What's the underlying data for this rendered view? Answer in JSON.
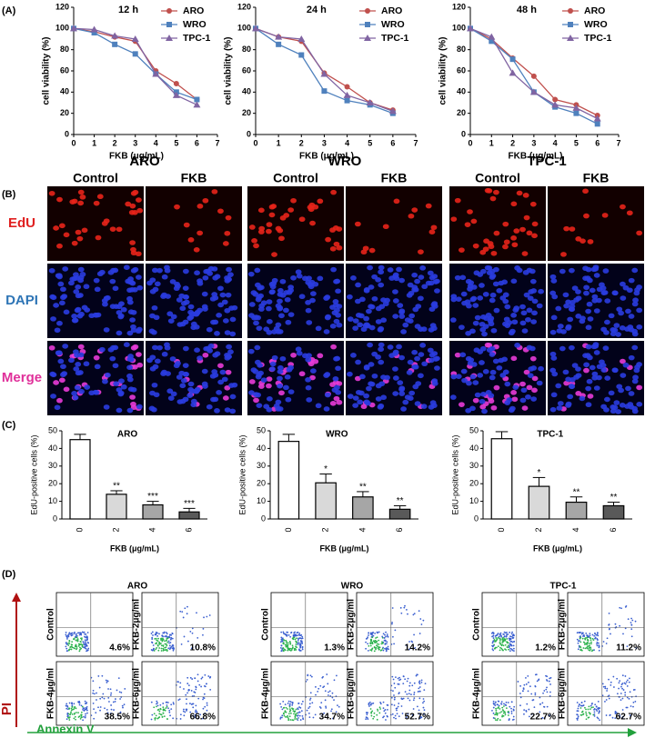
{
  "panel_labels": [
    "(A)",
    "(B)",
    "(C)",
    "(D)"
  ],
  "chart_data": [
    {
      "type": "line",
      "title": "12 h",
      "x_label": "FKB (μg/mL)",
      "y_label": "cell viability (%)",
      "x": [
        0,
        1,
        2,
        3,
        4,
        5,
        6
      ],
      "xlim": [
        0,
        7
      ],
      "xticks": [
        0,
        1,
        2,
        3,
        4,
        5,
        6,
        7
      ],
      "ylim": [
        0,
        120
      ],
      "yticks": [
        0,
        20,
        40,
        60,
        80,
        100,
        120
      ],
      "legend": "upper right",
      "series": [
        {
          "name": "ARO",
          "color": "#c0504d",
          "marker": "circle",
          "values": [
            100,
            97,
            92,
            88,
            60,
            48,
            33
          ]
        },
        {
          "name": "WRO",
          "color": "#4f81bd",
          "marker": "square",
          "values": [
            100,
            96,
            85,
            76,
            57,
            40,
            33
          ]
        },
        {
          "name": "TPC-1",
          "color": "#8064a2",
          "marker": "triangle",
          "values": [
            100,
            99,
            93,
            90,
            57,
            37,
            28
          ]
        }
      ]
    },
    {
      "type": "line",
      "title": "24 h",
      "x_label": "FKB (μg/mL)",
      "y_label": "cell viability (%)",
      "x": [
        0,
        1,
        2,
        3,
        4,
        5,
        6
      ],
      "xlim": [
        0,
        7
      ],
      "xticks": [
        0,
        1,
        2,
        3,
        4,
        5,
        6,
        7
      ],
      "ylim": [
        0,
        120
      ],
      "yticks": [
        0,
        20,
        40,
        60,
        80,
        100,
        120
      ],
      "legend": "upper right",
      "series": [
        {
          "name": "ARO",
          "color": "#c0504d",
          "marker": "circle",
          "values": [
            100,
            92,
            88,
            58,
            45,
            30,
            23
          ]
        },
        {
          "name": "WRO",
          "color": "#4f81bd",
          "marker": "square",
          "values": [
            100,
            85,
            75,
            41,
            32,
            28,
            20
          ]
        },
        {
          "name": "TPC-1",
          "color": "#8064a2",
          "marker": "triangle",
          "values": [
            100,
            92,
            90,
            57,
            37,
            30,
            22
          ]
        }
      ]
    },
    {
      "type": "line",
      "title": "48 h",
      "x_label": "FKB (μg/mL)",
      "y_label": "cell viability (%)",
      "x": [
        0,
        1,
        2,
        3,
        4,
        5,
        6
      ],
      "xlim": [
        0,
        7
      ],
      "xticks": [
        0,
        1,
        2,
        3,
        4,
        5,
        6,
        7
      ],
      "ylim": [
        0,
        120
      ],
      "yticks": [
        0,
        20,
        40,
        60,
        80,
        100,
        120
      ],
      "legend": "upper right",
      "series": [
        {
          "name": "ARO",
          "color": "#c0504d",
          "marker": "circle",
          "values": [
            100,
            90,
            72,
            55,
            33,
            28,
            18
          ]
        },
        {
          "name": "WRO",
          "color": "#4f81bd",
          "marker": "square",
          "values": [
            100,
            88,
            71,
            40,
            26,
            20,
            10
          ]
        },
        {
          "name": "TPC-1",
          "color": "#8064a2",
          "marker": "triangle",
          "values": [
            100,
            92,
            58,
            40,
            28,
            25,
            15
          ]
        }
      ]
    },
    {
      "type": "bar",
      "title": "ARO",
      "x_label": "FKB (μg/mL)",
      "y_label": "EdU-positive cells (%)",
      "categories": [
        "0",
        "2",
        "4",
        "6"
      ],
      "values": [
        45,
        14,
        8,
        4
      ],
      "errors": [
        3,
        2,
        2,
        2
      ],
      "annotations": [
        null,
        "**",
        "***",
        "***"
      ],
      "colors": [
        "#ffffff",
        "#d9d9d9",
        "#a6a6a6",
        "#595959"
      ],
      "ylim": [
        0,
        50
      ],
      "yticks": [
        0,
        10,
        20,
        30,
        40,
        50
      ]
    },
    {
      "type": "bar",
      "title": "WRO",
      "x_label": "FKB (μg/mL)",
      "y_label": "EdU-positive cells (%)",
      "categories": [
        "0",
        "2",
        "4",
        "6"
      ],
      "values": [
        44,
        20.5,
        12.5,
        5.5
      ],
      "errors": [
        4,
        5,
        3,
        2
      ],
      "annotations": [
        null,
        "*",
        "**",
        "**"
      ],
      "colors": [
        "#ffffff",
        "#d9d9d9",
        "#a6a6a6",
        "#595959"
      ],
      "ylim": [
        0,
        50
      ],
      "yticks": [
        0,
        10,
        20,
        30,
        40,
        50
      ]
    },
    {
      "type": "bar",
      "title": "TPC-1",
      "x_label": "FKB (μg/mL)",
      "y_label": "EdU-positive cells (%)",
      "categories": [
        "0",
        "2",
        "4",
        "6"
      ],
      "values": [
        45.5,
        18.5,
        9.5,
        7.5
      ],
      "errors": [
        4,
        5,
        3,
        2
      ],
      "annotations": [
        null,
        "*",
        "**",
        "**"
      ],
      "colors": [
        "#ffffff",
        "#d9d9d9",
        "#a6a6a6",
        "#595959"
      ],
      "ylim": [
        0,
        50
      ],
      "yticks": [
        0,
        10,
        20,
        30,
        40,
        50
      ]
    }
  ],
  "edu_panel": {
    "cell_lines": [
      "ARO",
      "WRO",
      "TPC-1"
    ],
    "conditions": [
      "Control",
      "FKB"
    ],
    "rows": [
      "EdU",
      "DAPI",
      "Merge"
    ]
  },
  "flow_panel": {
    "y_axis": "PI",
    "x_axis": "Annexin V",
    "groups": [
      {
        "title": "ARO",
        "plots": [
          {
            "label": "Control",
            "percent": "4.6%"
          },
          {
            "label": "FKB-2μg/ml",
            "percent": "10.8%"
          },
          {
            "label": "FKB-4μg/ml",
            "percent": "38.5%"
          },
          {
            "label": "FKB-6μg/ml",
            "percent": "66.8%"
          }
        ]
      },
      {
        "title": "WRO",
        "plots": [
          {
            "label": "Control",
            "percent": "1.3%"
          },
          {
            "label": "FKB-2μg/ml",
            "percent": "14.2%"
          },
          {
            "label": "FKB-4μg/ml",
            "percent": "34.7%"
          },
          {
            "label": "FKB-6μg/ml",
            "percent": "52.7%"
          }
        ]
      },
      {
        "title": "TPC-1",
        "plots": [
          {
            "label": "Control",
            "percent": "1.2%"
          },
          {
            "label": "FKB-2μg/ml",
            "percent": "11.2%"
          },
          {
            "label": "FKB-4μg/ml",
            "percent": "22.7%"
          },
          {
            "label": "FKB-6μg/ml",
            "percent": "62.7%"
          }
        ]
      }
    ]
  }
}
